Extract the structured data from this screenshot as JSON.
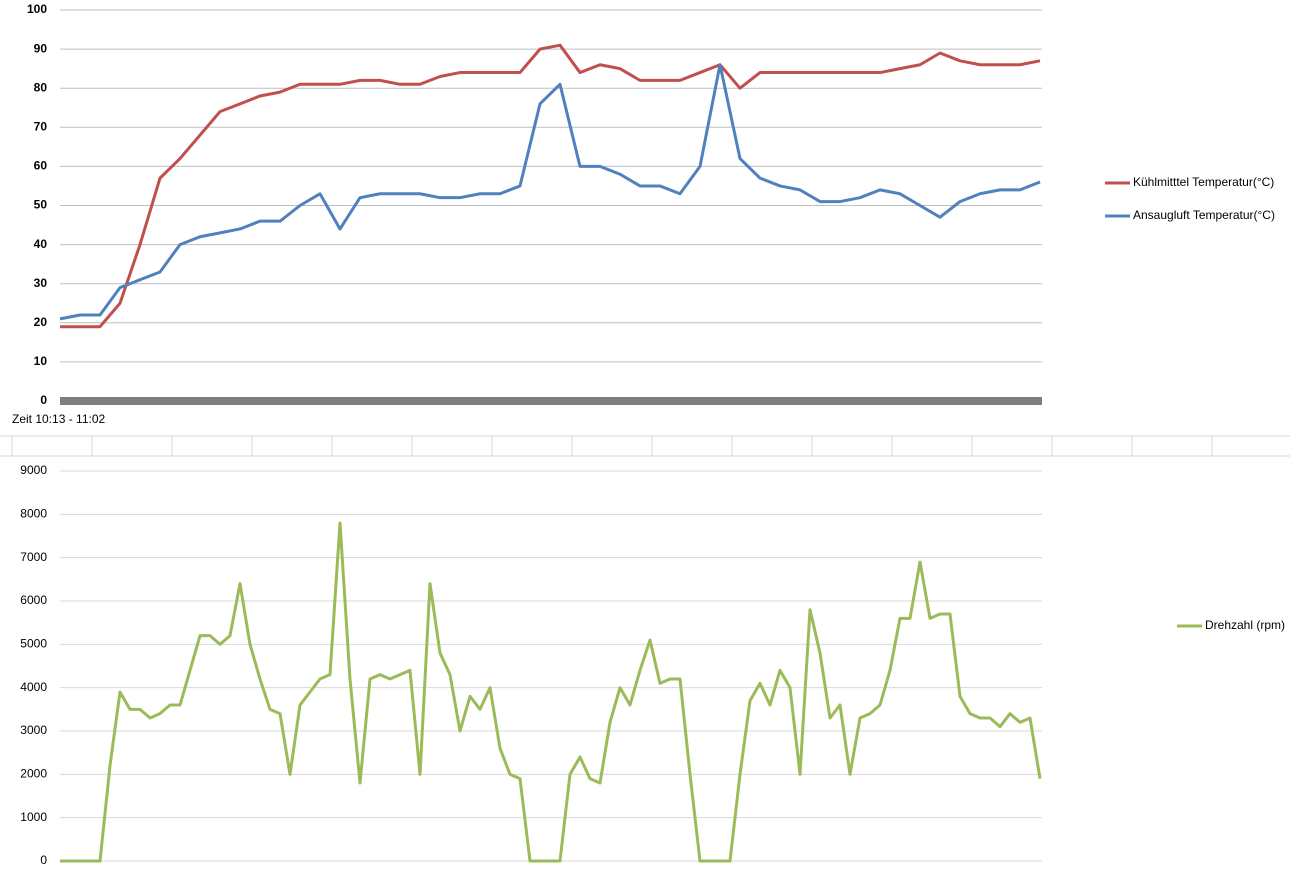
{
  "chart_data": [
    {
      "type": "line",
      "x_label": "Zeit 10:13 - 11:02",
      "ylim": [
        0,
        100
      ],
      "yticks": [
        0,
        10,
        20,
        30,
        40,
        50,
        60,
        70,
        80,
        90,
        100
      ],
      "grid": true,
      "legend": "right",
      "series": [
        {
          "name": "Kühlmitttel Temperatur(°C)",
          "color": "#c0504d",
          "values": [
            19,
            19,
            19,
            25,
            40,
            57,
            62,
            68,
            74,
            76,
            78,
            79,
            81,
            81,
            81,
            82,
            82,
            81,
            81,
            83,
            84,
            84,
            84,
            84,
            90,
            91,
            84,
            86,
            85,
            82,
            82,
            82,
            84,
            86,
            80,
            84,
            84,
            84,
            84,
            84,
            84,
            84,
            85,
            86,
            89,
            87,
            86,
            86,
            86,
            87
          ]
        },
        {
          "name": "Ansaugluft Temperatur(°C)",
          "color": "#4f81bd",
          "values": [
            21,
            22,
            22,
            29,
            31,
            33,
            40,
            42,
            43,
            44,
            46,
            46,
            50,
            53,
            44,
            52,
            53,
            53,
            53,
            52,
            52,
            53,
            53,
            55,
            76,
            81,
            60,
            60,
            58,
            55,
            55,
            53,
            60,
            86,
            62,
            57,
            55,
            54,
            51,
            51,
            52,
            54,
            53,
            50,
            47,
            51,
            53,
            54,
            54,
            56
          ]
        }
      ]
    },
    {
      "type": "line",
      "ylim": [
        0,
        9000
      ],
      "yticks": [
        0,
        1000,
        2000,
        3000,
        4000,
        5000,
        6000,
        7000,
        8000,
        9000
      ],
      "grid": true,
      "legend": "right",
      "series": [
        {
          "name": "Drehzahl (rpm)",
          "color": "#9bbb59",
          "values": [
            0,
            0,
            0,
            0,
            0,
            2200,
            3900,
            3500,
            3500,
            3300,
            3400,
            3600,
            3600,
            4400,
            5200,
            5200,
            5000,
            5200,
            6400,
            5000,
            4200,
            3500,
            3400,
            2000,
            3600,
            3900,
            4200,
            4300,
            7800,
            4200,
            1800,
            4200,
            4300,
            4200,
            4300,
            4400,
            2000,
            6400,
            4800,
            4300,
            3000,
            3800,
            3500,
            4000,
            2600,
            2000,
            1900,
            0,
            0,
            0,
            0,
            2000,
            2400,
            1900,
            1800,
            3200,
            4000,
            3600,
            4400,
            5100,
            4100,
            4200,
            4200,
            2000,
            0,
            0,
            0,
            0,
            2000,
            3700,
            4100,
            3600,
            4400,
            4000,
            2000,
            5800,
            4800,
            3300,
            3600,
            2000,
            3300,
            3400,
            3600,
            4400,
            5600,
            5600,
            6900,
            5600,
            5700,
            5700,
            3800,
            3400,
            3300,
            3300,
            3100,
            3400,
            3200,
            3300,
            1900
          ]
        }
      ]
    }
  ]
}
